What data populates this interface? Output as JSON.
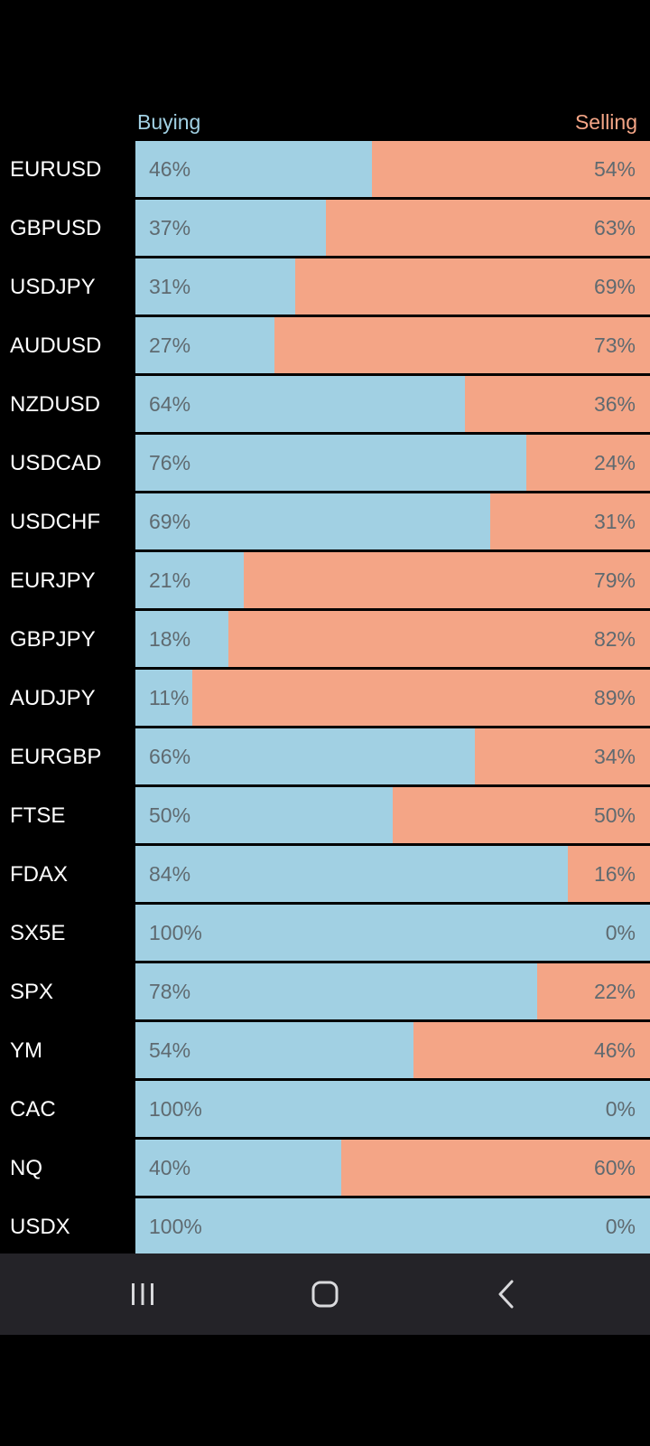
{
  "header": {
    "buying_label": "Buying",
    "selling_label": "Selling"
  },
  "colors": {
    "buying": "#a1d0e3",
    "selling": "#f4a586",
    "background": "#000000",
    "navbar": "#242328"
  },
  "sentiment": [
    {
      "symbol": "EURUSD",
      "buy": 46,
      "sell": 54,
      "buy_label": "46%",
      "sell_label": "54%"
    },
    {
      "symbol": "GBPUSD",
      "buy": 37,
      "sell": 63,
      "buy_label": "37%",
      "sell_label": "63%"
    },
    {
      "symbol": "USDJPY",
      "buy": 31,
      "sell": 69,
      "buy_label": "31%",
      "sell_label": "69%"
    },
    {
      "symbol": "AUDUSD",
      "buy": 27,
      "sell": 73,
      "buy_label": "27%",
      "sell_label": "73%"
    },
    {
      "symbol": "NZDUSD",
      "buy": 64,
      "sell": 36,
      "buy_label": "64%",
      "sell_label": "36%"
    },
    {
      "symbol": "USDCAD",
      "buy": 76,
      "sell": 24,
      "buy_label": "76%",
      "sell_label": "24%"
    },
    {
      "symbol": "USDCHF",
      "buy": 69,
      "sell": 31,
      "buy_label": "69%",
      "sell_label": "31%"
    },
    {
      "symbol": "EURJPY",
      "buy": 21,
      "sell": 79,
      "buy_label": "21%",
      "sell_label": "79%"
    },
    {
      "symbol": "GBPJPY",
      "buy": 18,
      "sell": 82,
      "buy_label": "18%",
      "sell_label": "82%"
    },
    {
      "symbol": "AUDJPY",
      "buy": 11,
      "sell": 89,
      "buy_label": "11%",
      "sell_label": "89%"
    },
    {
      "symbol": "EURGBP",
      "buy": 66,
      "sell": 34,
      "buy_label": "66%",
      "sell_label": "34%"
    },
    {
      "symbol": "FTSE",
      "buy": 50,
      "sell": 50,
      "buy_label": "50%",
      "sell_label": "50%"
    },
    {
      "symbol": "FDAX",
      "buy": 84,
      "sell": 16,
      "buy_label": "84%",
      "sell_label": "16%"
    },
    {
      "symbol": "SX5E",
      "buy": 100,
      "sell": 0,
      "buy_label": "100%",
      "sell_label": "0%"
    },
    {
      "symbol": "SPX",
      "buy": 78,
      "sell": 22,
      "buy_label": "78%",
      "sell_label": "22%"
    },
    {
      "symbol": "YM",
      "buy": 54,
      "sell": 46,
      "buy_label": "54%",
      "sell_label": "46%"
    },
    {
      "symbol": "CAC",
      "buy": 100,
      "sell": 0,
      "buy_label": "100%",
      "sell_label": "0%"
    },
    {
      "symbol": "NQ",
      "buy": 40,
      "sell": 60,
      "buy_label": "40%",
      "sell_label": "60%"
    },
    {
      "symbol": "USDX",
      "buy": 100,
      "sell": 0,
      "buy_label": "100%",
      "sell_label": "0%"
    }
  ],
  "navbar": {
    "recent_icon": "recent-apps-icon",
    "home_icon": "home-icon",
    "back_icon": "back-icon"
  }
}
